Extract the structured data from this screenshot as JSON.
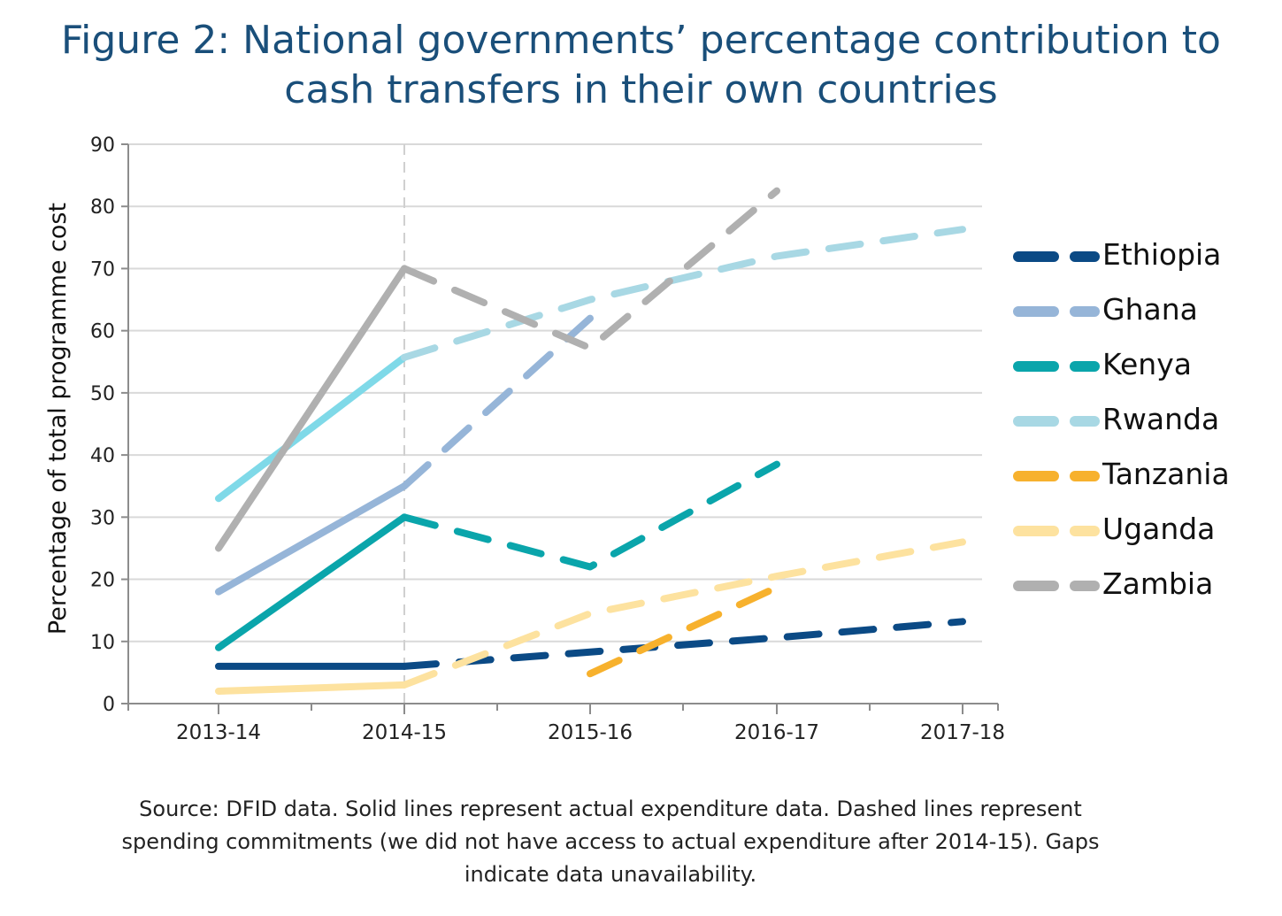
{
  "chart_data": {
    "type": "line",
    "title": [
      "Figure 2: National governments’ percentage contribution to",
      "cash transfers in their own countries"
    ],
    "xlabel": "",
    "ylabel": "Percentage of total programme cost",
    "categories": [
      "2013-14",
      "2014-15",
      "2015-16",
      "2016-17",
      "2017-18"
    ],
    "ylim": [
      0,
      90
    ],
    "yticks": [
      "0",
      "10",
      "20",
      "30",
      "40",
      "50",
      "60",
      "70",
      "80",
      "90"
    ],
    "grid": true,
    "legend_position": "right",
    "solid_meaning": "actual expenditure",
    "dashed_meaning": "spending commitments",
    "series": [
      {
        "name": "Ethiopia",
        "color": "#0b4a85",
        "actual": [
          [
            0,
            6
          ],
          [
            1,
            6
          ]
        ],
        "committed": [
          [
            1,
            6
          ],
          [
            2,
            8.3
          ],
          [
            3,
            10.6
          ],
          [
            4,
            13.2
          ]
        ]
      },
      {
        "name": "Ghana",
        "color": "#96b5d8",
        "actual": [
          [
            0,
            18
          ],
          [
            1,
            35
          ]
        ],
        "committed": [
          [
            1,
            35
          ],
          [
            2,
            62
          ]
        ]
      },
      {
        "name": "Kenya",
        "color": "#0aa5ab",
        "actual": [
          [
            0,
            9
          ],
          [
            1,
            30
          ]
        ],
        "committed": [
          [
            1,
            30
          ],
          [
            2,
            22
          ],
          [
            3,
            38.5
          ]
        ]
      },
      {
        "name": "Rwanda",
        "color": "#7fd9e8",
        "legend_color": "#a8d8e4",
        "committed_color": "#a8d8e4",
        "actual": [
          [
            0,
            33
          ],
          [
            1,
            55.7
          ]
        ],
        "committed": [
          [
            1,
            55.7
          ],
          [
            2,
            65
          ],
          [
            3,
            72
          ],
          [
            4,
            76.3
          ]
        ]
      },
      {
        "name": "Tanzania",
        "color": "#f7b12d",
        "actual": [],
        "committed": [
          [
            2,
            4.8
          ],
          [
            3,
            18.7
          ]
        ]
      },
      {
        "name": "Uganda",
        "color": "#fde29f",
        "actual": [
          [
            0,
            2
          ],
          [
            1,
            3
          ]
        ],
        "committed": [
          [
            1,
            3
          ],
          [
            2,
            14.5
          ],
          [
            3,
            20.5
          ],
          [
            4,
            26
          ]
        ]
      },
      {
        "name": "Zambia",
        "color": "#b0b0b0",
        "actual": [
          [
            0,
            25
          ],
          [
            1,
            70
          ]
        ],
        "committed": [
          [
            1,
            70
          ],
          [
            2,
            57.2
          ],
          [
            3,
            82.5
          ]
        ]
      }
    ]
  },
  "source_note": [
    "Source: DFID data. Solid lines represent actual expenditure data. Dashed lines represent",
    "spending commitments (we did not have access to actual expenditure after 2014-15). Gaps",
    "indicate data unavailability."
  ]
}
